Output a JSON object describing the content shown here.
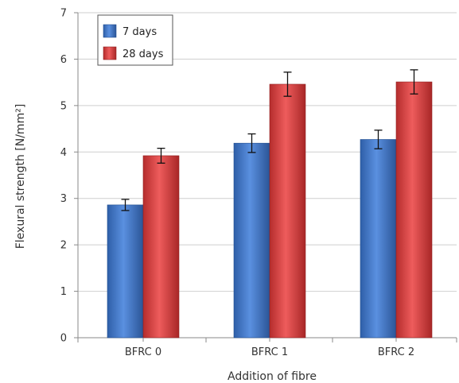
{
  "chart_data": {
    "type": "bar",
    "categories": [
      "BFRC 0",
      "BFRC 1",
      "BFRC 2"
    ],
    "series": [
      {
        "name": "7 days",
        "values": [
          2.86,
          4.19,
          4.27
        ],
        "errors": [
          0.12,
          0.2,
          0.2
        ],
        "color": "#3f74c4"
      },
      {
        "name": "28 days",
        "values": [
          3.92,
          5.46,
          5.51
        ],
        "errors": [
          0.16,
          0.26,
          0.26
        ],
        "color": "#d64242"
      }
    ],
    "xlabel": "Addition of fibre",
    "ylabel": "Flexural strength [N/mm²]",
    "ylim": [
      0,
      7
    ],
    "yticks": [
      "0",
      "1",
      "2",
      "3",
      "4",
      "5",
      "6",
      "7"
    ],
    "grid": true,
    "legend_position": "top-left"
  }
}
